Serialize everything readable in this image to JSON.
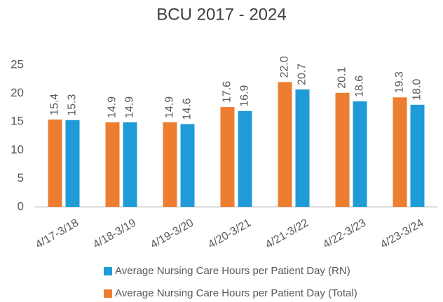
{
  "chart_data": {
    "type": "bar",
    "title": "BCU 2017 - 2024",
    "categories": [
      "4/17-3/18",
      "4/18-3/19",
      "4/19-3/20",
      "4/20-3/21",
      "4/21-3/22",
      "4/22-3/23",
      "4/23-3/24"
    ],
    "series": [
      {
        "name": "Average Nursing Care Hours per Patient Day (Total)",
        "color": "#ED7D31",
        "values": [
          15.4,
          14.9,
          14.9,
          17.6,
          22.0,
          20.1,
          19.3
        ],
        "value_labels": [
          "15.4",
          "14.9",
          "14.9",
          "17.6",
          "22.0",
          "20.1",
          "19.3"
        ]
      },
      {
        "name": "Average Nursing Care Hours per Patient Day (RN)",
        "color": "#1F9BD7",
        "values": [
          15.3,
          14.9,
          14.6,
          16.9,
          20.7,
          18.6,
          18.0
        ],
        "value_labels": [
          "15.3",
          "14.9",
          "14.6",
          "16.9",
          "20.7",
          "18.6",
          "18.0"
        ]
      }
    ],
    "ylim": [
      0,
      25
    ],
    "yticks": [
      0,
      5,
      10,
      15,
      20,
      25
    ],
    "grid": false
  }
}
